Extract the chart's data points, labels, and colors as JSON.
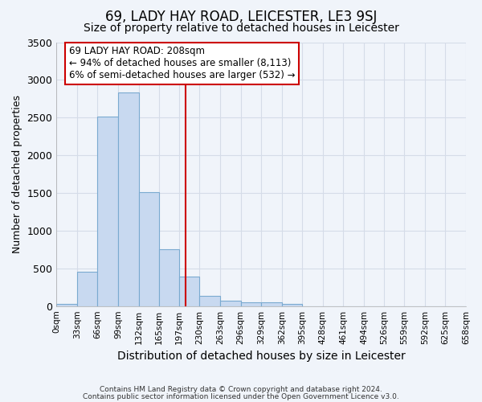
{
  "title": "69, LADY HAY ROAD, LEICESTER, LE3 9SJ",
  "subtitle": "Size of property relative to detached houses in Leicester",
  "xlabel": "Distribution of detached houses by size in Leicester",
  "ylabel": "Number of detached properties",
  "footnote1": "Contains HM Land Registry data © Crown copyright and database right 2024.",
  "footnote2": "Contains public sector information licensed under the Open Government Licence v3.0.",
  "bin_edges": [
    0,
    33,
    66,
    99,
    132,
    165,
    197,
    230,
    263,
    296,
    329,
    362,
    395,
    428,
    461,
    494,
    526,
    559,
    592,
    625,
    658
  ],
  "bar_heights": [
    30,
    460,
    2510,
    2830,
    1510,
    750,
    390,
    140,
    70,
    55,
    55,
    30,
    0,
    0,
    0,
    0,
    0,
    0,
    0,
    0
  ],
  "bar_color": "#c8d9f0",
  "bar_edge_color": "#7aaad0",
  "bar_edge_width": 0.8,
  "grid_color": "#d5dce8",
  "background_color": "#f0f4fa",
  "red_line_x": 208,
  "annotation_text_line1": "69 LADY HAY ROAD: 208sqm",
  "annotation_text_line2": "← 94% of detached houses are smaller (8,113)",
  "annotation_text_line3": "6% of semi-detached houses are larger (532) →",
  "annotation_box_color": "#cc0000",
  "annotation_text_color": "#000000",
  "annotation_bg_color": "#ffffff",
  "ylim": [
    0,
    3500
  ],
  "title_fontsize": 12,
  "subtitle_fontsize": 10,
  "tick_labels": [
    "0sqm",
    "33sqm",
    "66sqm",
    "99sqm",
    "132sqm",
    "165sqm",
    "197sqm",
    "230sqm",
    "263sqm",
    "296sqm",
    "329sqm",
    "362sqm",
    "395sqm",
    "428sqm",
    "461sqm",
    "494sqm",
    "526sqm",
    "559sqm",
    "592sqm",
    "625sqm",
    "658sqm"
  ],
  "yticks": [
    0,
    500,
    1000,
    1500,
    2000,
    2500,
    3000,
    3500
  ]
}
